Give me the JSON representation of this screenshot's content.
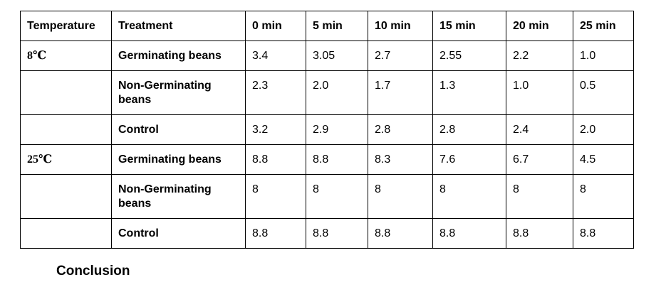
{
  "table": {
    "headers": [
      "Temperature",
      "Treatment",
      "0 min",
      "5 min",
      "10 min",
      "15 min",
      "20 min",
      "25 min"
    ],
    "rows": [
      {
        "temperature": "8℃",
        "treatment": "Germinating beans",
        "values": [
          "3.4",
          "3.05",
          "2.7",
          "2.55",
          "2.2",
          "1.0"
        ]
      },
      {
        "temperature": "",
        "treatment": "Non-Germinating beans",
        "values": [
          "2.3",
          "2.0",
          "1.7",
          "1.3",
          "1.0",
          "0.5"
        ]
      },
      {
        "temperature": "",
        "treatment": "Control",
        "values": [
          "3.2",
          "2.9",
          "2.8",
          "2.8",
          "2.4",
          "2.0"
        ]
      },
      {
        "temperature": "25℃",
        "treatment": "Germinating beans",
        "values": [
          "8.8",
          "8.8",
          "8.3",
          "7.6",
          "6.7",
          "4.5"
        ]
      },
      {
        "temperature": "",
        "treatment": "Non-Germinating beans",
        "values": [
          "8",
          "8",
          "8",
          "8",
          "8",
          "8"
        ]
      },
      {
        "temperature": "",
        "treatment": "Control",
        "values": [
          "8.8",
          "8.8",
          "8.8",
          "8.8",
          "8.8",
          "8.8"
        ]
      }
    ]
  },
  "conclusion_heading": "Conclusion"
}
